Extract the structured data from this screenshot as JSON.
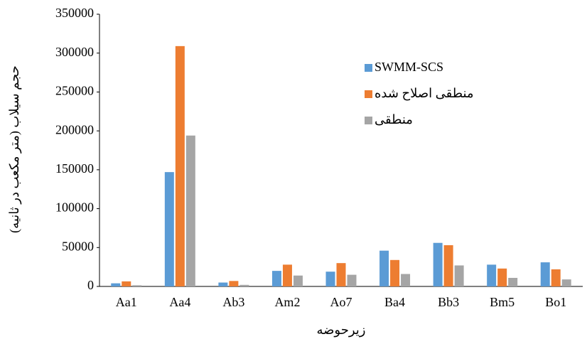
{
  "chart_data": {
    "type": "bar",
    "y_label": "حجم سیلاب (متر مکعب در ثانیه)",
    "x_label": "زیرحوضه",
    "categories": [
      "Aa1",
      "Aa4",
      "Ab3",
      "Am2",
      "Ao7",
      "Ba4",
      "Bb3",
      "Bm5",
      "Bo1"
    ],
    "series": [
      {
        "name": "SWMM-SCS",
        "color": "#5b9bd5",
        "values": [
          4000,
          147000,
          5000,
          20000,
          19000,
          46000,
          56000,
          28000,
          31000
        ]
      },
      {
        "name": "منطقی اصلاح شده",
        "color": "#ed7d31",
        "values": [
          6500,
          309000,
          7000,
          28000,
          30000,
          34000,
          53000,
          23000,
          22000
        ]
      },
      {
        "name": "منطقی",
        "color": "#a5a5a5",
        "values": [
          1500,
          194000,
          2000,
          14000,
          15000,
          16000,
          27000,
          11000,
          9000
        ]
      }
    ],
    "ylim": [
      0,
      350000
    ],
    "yticks": [
      0,
      50000,
      100000,
      150000,
      200000,
      250000,
      300000,
      350000
    ],
    "grid": false
  }
}
